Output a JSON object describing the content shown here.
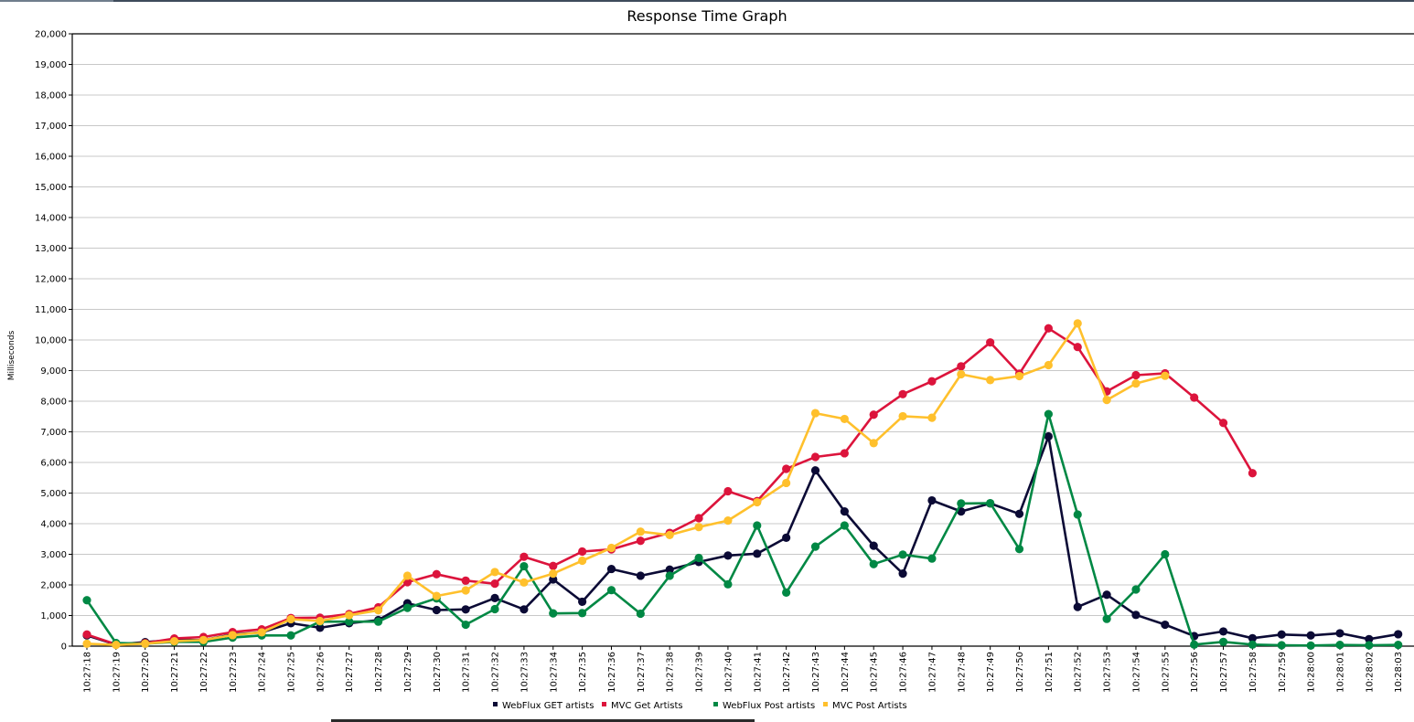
{
  "chart_data": {
    "type": "line",
    "title": "Response Time Graph",
    "xlabel": "",
    "ylabel": "Milliseconds",
    "ylim": [
      0,
      20000
    ],
    "yticks": [
      "0",
      "1,000",
      "2,000",
      "3,000",
      "4,000",
      "5,000",
      "6,000",
      "7,000",
      "8,000",
      "9,000",
      "10,000",
      "11,000",
      "12,000",
      "13,000",
      "14,000",
      "15,000",
      "16,000",
      "17,000",
      "18,000",
      "19,000",
      "20,000"
    ],
    "grid": true,
    "legend_position": "bottom",
    "x": [
      "10:27:18",
      "10:27:19",
      "10:27:20",
      "10:27:21",
      "10:27:22",
      "10:27:23",
      "10:27:24",
      "10:27:25",
      "10:27:26",
      "10:27:27",
      "10:27:28",
      "10:27:29",
      "10:27:30",
      "10:27:31",
      "10:27:32",
      "10:27:33",
      "10:27:34",
      "10:27:35",
      "10:27:36",
      "10:27:37",
      "10:27:38",
      "10:27:39",
      "10:27:40",
      "10:27:41",
      "10:27:42",
      "10:27:43",
      "10:27:44",
      "10:27:45",
      "10:27:46",
      "10:27:47",
      "10:27:48",
      "10:27:49",
      "10:27:50",
      "10:27:51",
      "10:27:52",
      "10:27:53",
      "10:27:54",
      "10:27:55",
      "10:27:56",
      "10:27:57",
      "10:27:58",
      "10:27:59",
      "10:28:00",
      "10:28:01",
      "10:28:02",
      "10:28:03"
    ],
    "series": [
      {
        "name": "WebFlux GET artists",
        "color": "#0b0a35",
        "values": [
          350,
          50,
          130,
          200,
          200,
          380,
          450,
          750,
          600,
          750,
          850,
          1400,
          1180,
          1200,
          1570,
          1200,
          2180,
          1450,
          2520,
          2300,
          2500,
          2750,
          2960,
          3020,
          3540,
          5740,
          4400,
          3280,
          2370,
          4760,
          4400,
          4660,
          4320,
          6850,
          1280,
          1680,
          1020,
          700,
          330,
          480,
          260,
          380,
          350,
          420,
          230,
          390
        ]
      },
      {
        "name": "MVC Get Artists",
        "color": "#dc143c",
        "values": [
          380,
          60,
          100,
          250,
          300,
          460,
          550,
          920,
          930,
          1050,
          1270,
          2090,
          2350,
          2140,
          2040,
          2920,
          2620,
          3090,
          3160,
          3440,
          3700,
          4180,
          5060,
          4740,
          5790,
          6180,
          6300,
          7560,
          8230,
          8650,
          9140,
          9920,
          8900,
          10380,
          9770,
          8320,
          8850,
          8910,
          8120,
          7290,
          5650,
          null,
          null,
          null,
          null,
          null
        ]
      },
      {
        "name": "WebFlux Post artists",
        "color": "#008844",
        "values": [
          1500,
          100,
          80,
          140,
          140,
          280,
          350,
          350,
          800,
          800,
          800,
          1250,
          1560,
          700,
          1210,
          2610,
          1070,
          1080,
          1830,
          1060,
          2300,
          2880,
          2020,
          3940,
          1750,
          3250,
          3940,
          2680,
          2990,
          2860,
          4660,
          4670,
          3170,
          7580,
          4300,
          890,
          1850,
          3000,
          50,
          140,
          50,
          30,
          20,
          40,
          30,
          40
        ]
      },
      {
        "name": "MVC Post Artists",
        "color": "#ffc02c",
        "values": [
          80,
          40,
          80,
          160,
          200,
          360,
          450,
          880,
          820,
          1010,
          1170,
          2300,
          1640,
          1820,
          2420,
          2080,
          2370,
          2790,
          3210,
          3740,
          3630,
          3890,
          4100,
          4700,
          5330,
          7610,
          7420,
          6630,
          7510,
          7460,
          8880,
          8690,
          8820,
          9180,
          10540,
          8040,
          8580,
          8830,
          null,
          null,
          null,
          null,
          null,
          null,
          null,
          null
        ]
      }
    ]
  }
}
